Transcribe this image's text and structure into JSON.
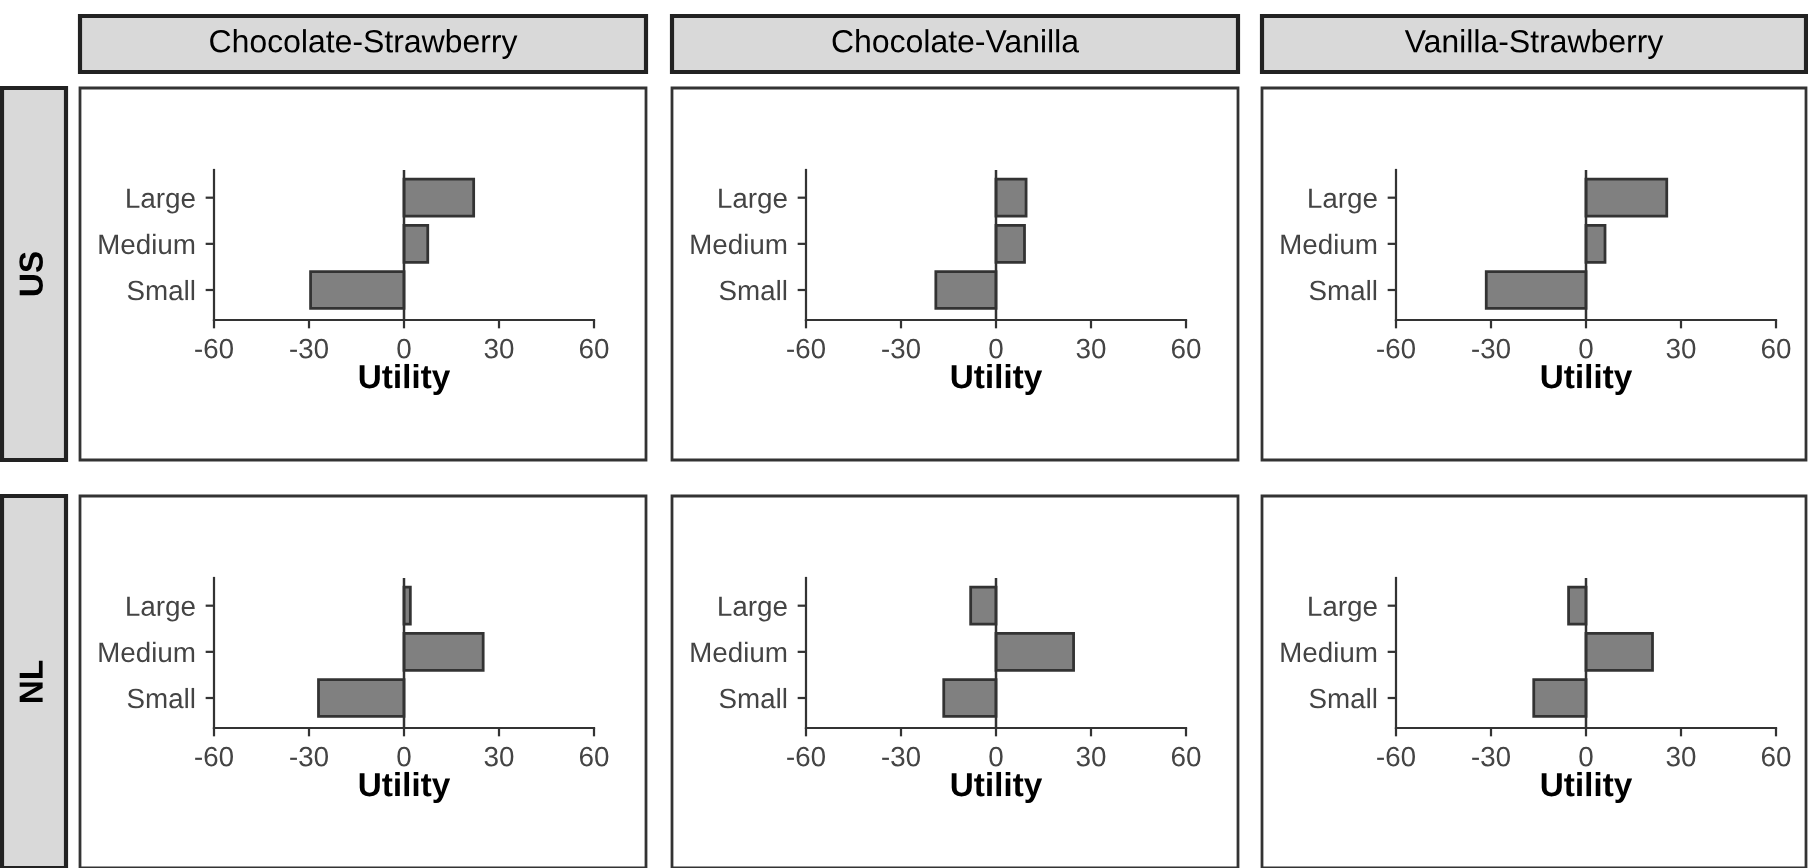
{
  "chart_data": [
    {
      "type": "bar",
      "orientation": "horizontal",
      "title": "Chocolate-Strawberry",
      "annotations": [
        "US"
      ],
      "categories": [
        "Large",
        "Medium",
        "Small"
      ],
      "values": [
        22,
        7.5,
        -29.5
      ],
      "color": "#808080",
      "xlabel": "Utility",
      "xlim": [
        -60,
        60
      ],
      "xticks": [
        -60,
        -30,
        0,
        30,
        60
      ],
      "ref_lines": [
        {
          "axis": "x",
          "value": 0
        }
      ],
      "grid": false,
      "legend": false
    },
    {
      "type": "bar",
      "orientation": "horizontal",
      "title": "Chocolate-Vanilla",
      "categories": [
        "Large",
        "Medium",
        "Small"
      ],
      "values": [
        9.5,
        9,
        -19
      ],
      "color": "#808080",
      "xlabel": "Utility",
      "xlim": [
        -60,
        60
      ],
      "xticks": [
        -60,
        -30,
        0,
        30,
        60
      ],
      "ref_lines": [
        {
          "axis": "x",
          "value": 0
        }
      ],
      "grid": false,
      "legend": false
    },
    {
      "type": "bar",
      "orientation": "horizontal",
      "title": "Vanilla-Strawberry",
      "categories": [
        "Large",
        "Medium",
        "Small"
      ],
      "values": [
        25.5,
        6,
        -31.5
      ],
      "color": "#808080",
      "xlabel": "Utility",
      "xlim": [
        -60,
        60
      ],
      "xticks": [
        -60,
        -30,
        0,
        30,
        60
      ],
      "ref_lines": [
        {
          "axis": "x",
          "value": 0
        }
      ],
      "grid": false,
      "legend": false
    },
    {
      "type": "bar",
      "orientation": "horizontal",
      "annotations": [
        "NL"
      ],
      "categories": [
        "Large",
        "Medium",
        "Small"
      ],
      "values": [
        2,
        25,
        -27
      ],
      "color": "#808080",
      "xlabel": "Utility",
      "xlim": [
        -60,
        60
      ],
      "xticks": [
        -60,
        -30,
        0,
        30,
        60
      ],
      "ref_lines": [
        {
          "axis": "x",
          "value": 0
        }
      ],
      "grid": false,
      "legend": false
    },
    {
      "type": "bar",
      "orientation": "horizontal",
      "categories": [
        "Large",
        "Medium",
        "Small"
      ],
      "values": [
        -8,
        24.5,
        -16.5
      ],
      "color": "#808080",
      "xlabel": "Utility",
      "xlim": [
        -60,
        60
      ],
      "xticks": [
        -60,
        -30,
        0,
        30,
        60
      ],
      "ref_lines": [
        {
          "axis": "x",
          "value": 0
        }
      ],
      "grid": false,
      "legend": false
    },
    {
      "type": "bar",
      "orientation": "horizontal",
      "categories": [
        "Large",
        "Medium",
        "Small"
      ],
      "values": [
        -5.5,
        21,
        -16.5
      ],
      "color": "#808080",
      "xlabel": "Utility",
      "xlim": [
        -60,
        60
      ],
      "xticks": [
        -60,
        -30,
        0,
        30,
        60
      ],
      "ref_lines": [
        {
          "axis": "x",
          "value": 0
        }
      ],
      "grid": false,
      "legend": false
    }
  ]
}
